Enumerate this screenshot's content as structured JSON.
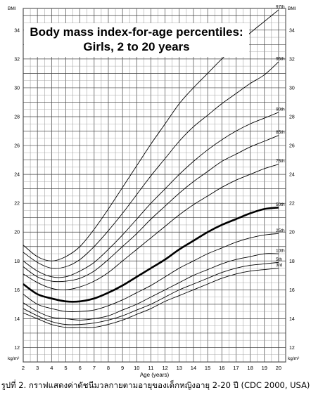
{
  "chart_data": {
    "type": "line",
    "title_line1": "Body mass index-for-age percentiles:",
    "title_line2": "Girls, 2 to 20 years",
    "ylabel_top": "BMI",
    "ylabel_bottom": "kg/m²",
    "xlabel": "Age (years)",
    "xlim": [
      2,
      20.5
    ],
    "ylim": [
      11,
      35.5
    ],
    "x_ticks": [
      2,
      3,
      4,
      5,
      6,
      7,
      8,
      9,
      10,
      11,
      12,
      13,
      14,
      15,
      16,
      17,
      18,
      19,
      20
    ],
    "y_ticks": [
      12,
      14,
      16,
      18,
      20,
      22,
      24,
      26,
      28,
      30,
      32,
      34
    ],
    "grid": true,
    "series": [
      {
        "name": "97th",
        "highlight": false,
        "x": [
          2,
          3,
          4,
          5,
          6,
          7,
          8,
          9,
          10,
          11,
          12,
          13,
          14,
          15,
          16,
          17,
          18,
          19,
          20
        ],
        "values": [
          19.1,
          18.3,
          18.0,
          18.3,
          19.0,
          20.2,
          21.6,
          23.1,
          24.6,
          26.1,
          27.5,
          28.9,
          30.0,
          31.0,
          32.0,
          32.9,
          33.8,
          34.6,
          35.4
        ]
      },
      {
        "name": "95th",
        "highlight": false,
        "x": [
          2,
          3,
          4,
          5,
          6,
          7,
          8,
          9,
          10,
          11,
          12,
          13,
          14,
          15,
          16,
          17,
          18,
          19,
          20
        ],
        "values": [
          18.6,
          17.9,
          17.5,
          17.6,
          18.1,
          19.0,
          20.1,
          21.3,
          22.6,
          23.9,
          25.1,
          26.3,
          27.3,
          28.1,
          28.9,
          29.6,
          30.3,
          30.9,
          31.8
        ]
      },
      {
        "name": "90th",
        "highlight": false,
        "x": [
          2,
          3,
          4,
          5,
          6,
          7,
          8,
          9,
          10,
          11,
          12,
          13,
          14,
          15,
          16,
          17,
          18,
          19,
          20
        ],
        "values": [
          18.0,
          17.3,
          16.9,
          16.9,
          17.3,
          17.9,
          18.8,
          19.8,
          20.9,
          22.0,
          23.0,
          24.0,
          24.9,
          25.7,
          26.4,
          27.0,
          27.5,
          27.9,
          28.3
        ]
      },
      {
        "name": "85th",
        "highlight": false,
        "x": [
          2,
          3,
          4,
          5,
          6,
          7,
          8,
          9,
          10,
          11,
          12,
          13,
          14,
          15,
          16,
          17,
          18,
          19,
          20
        ],
        "values": [
          17.6,
          16.9,
          16.6,
          16.6,
          16.8,
          17.3,
          18.1,
          19.0,
          19.9,
          20.9,
          21.8,
          22.7,
          23.5,
          24.2,
          24.9,
          25.4,
          25.9,
          26.3,
          26.7
        ]
      },
      {
        "name": "75th",
        "highlight": false,
        "x": [
          2,
          3,
          4,
          5,
          6,
          7,
          8,
          9,
          10,
          11,
          12,
          13,
          14,
          15,
          16,
          17,
          18,
          19,
          20
        ],
        "values": [
          17.1,
          16.5,
          16.1,
          16.0,
          16.2,
          16.6,
          17.2,
          18.0,
          18.8,
          19.6,
          20.4,
          21.2,
          21.9,
          22.5,
          23.1,
          23.6,
          24.0,
          24.4,
          24.7
        ]
      },
      {
        "name": "50th",
        "highlight": true,
        "x": [
          2,
          3,
          4,
          5,
          6,
          7,
          8,
          9,
          10,
          11,
          12,
          13,
          14,
          15,
          16,
          17,
          18,
          19,
          20
        ],
        "values": [
          16.4,
          15.7,
          15.4,
          15.2,
          15.2,
          15.4,
          15.8,
          16.3,
          16.9,
          17.5,
          18.1,
          18.8,
          19.4,
          20.0,
          20.5,
          20.9,
          21.3,
          21.6,
          21.7
        ]
      },
      {
        "name": "25th",
        "highlight": false,
        "x": [
          2,
          3,
          4,
          5,
          6,
          7,
          8,
          9,
          10,
          11,
          12,
          13,
          14,
          15,
          16,
          17,
          18,
          19,
          20
        ],
        "values": [
          15.7,
          15.0,
          14.7,
          14.5,
          14.5,
          14.6,
          14.9,
          15.3,
          15.8,
          16.3,
          16.9,
          17.5,
          18.0,
          18.5,
          18.9,
          19.3,
          19.6,
          19.8,
          19.9
        ]
      },
      {
        "name": "10th",
        "highlight": false,
        "x": [
          2,
          3,
          4,
          5,
          6,
          7,
          8,
          9,
          10,
          11,
          12,
          13,
          14,
          15,
          16,
          17,
          18,
          19,
          20
        ],
        "values": [
          15.1,
          14.5,
          14.1,
          14.0,
          13.9,
          14.0,
          14.2,
          14.6,
          15.0,
          15.5,
          16.0,
          16.5,
          17.0,
          17.4,
          17.8,
          18.1,
          18.3,
          18.5,
          18.5
        ]
      },
      {
        "name": "5th",
        "highlight": false,
        "x": [
          2,
          3,
          4,
          5,
          6,
          7,
          8,
          9,
          10,
          11,
          12,
          13,
          14,
          15,
          16,
          17,
          18,
          19,
          20
        ],
        "values": [
          14.7,
          14.2,
          13.8,
          13.6,
          13.6,
          13.7,
          13.9,
          14.2,
          14.6,
          15.0,
          15.5,
          16.0,
          16.4,
          16.8,
          17.2,
          17.5,
          17.7,
          17.8,
          17.9
        ]
      },
      {
        "name": "3rd",
        "highlight": false,
        "x": [
          2,
          3,
          4,
          5,
          6,
          7,
          8,
          9,
          10,
          11,
          12,
          13,
          14,
          15,
          16,
          17,
          18,
          19,
          20
        ],
        "values": [
          14.4,
          14.0,
          13.6,
          13.4,
          13.4,
          13.4,
          13.6,
          13.9,
          14.3,
          14.7,
          15.2,
          15.6,
          16.0,
          16.4,
          16.8,
          17.1,
          17.3,
          17.4,
          17.5
        ]
      }
    ],
    "caption": "รูปที่ 2. กราฟแสดงค่าดัชนีมวลกายตามอายุของเด็กหญิงอายุ 2-20 ปี (CDC 2000, USA)"
  }
}
